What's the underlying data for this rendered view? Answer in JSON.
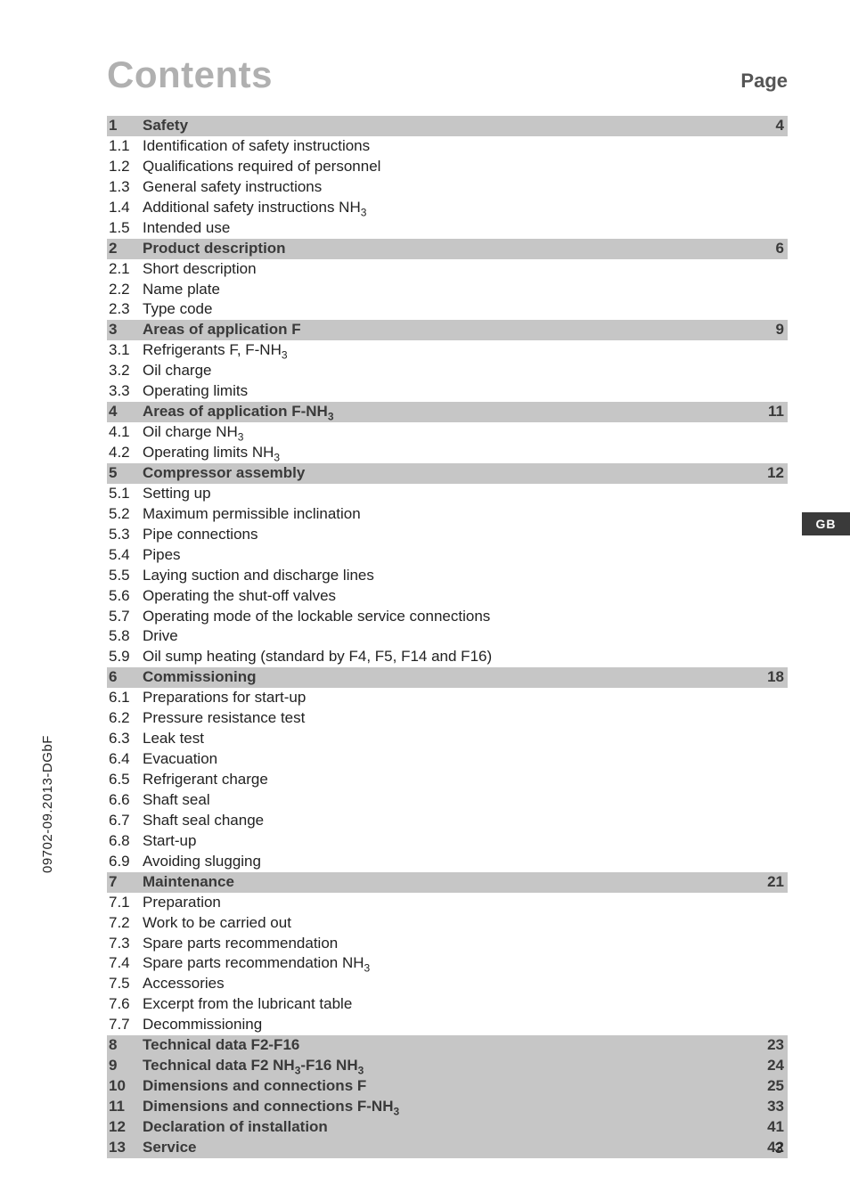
{
  "title": "Contents",
  "page_label": "Page",
  "side_code": "09702-09.2013-DGbF",
  "gb_tab": "GB",
  "footer_page": "3",
  "colors": {
    "title_gray": "#b0b0b0",
    "section_bg": "#c6c6c6",
    "section_fg": "#3a3a3a",
    "body_text": "#222222",
    "tab_bg": "#3a3a3a",
    "tab_fg": "#ffffff",
    "page_bg": "#ffffff"
  },
  "toc": [
    {
      "type": "section",
      "num": "1",
      "label": "Safety",
      "page": "4"
    },
    {
      "type": "item",
      "num": "1.1",
      "label": "Identification of safety instructions"
    },
    {
      "type": "item",
      "num": "1.2",
      "label": "Qualifications required of personnel"
    },
    {
      "type": "item",
      "num": "1.3",
      "label": "General safety instructions"
    },
    {
      "type": "item",
      "num": "1.4",
      "label_html": "Additional safety instructions NH<sub>3</sub>"
    },
    {
      "type": "item",
      "num": "1.5",
      "label": "Intended use"
    },
    {
      "type": "section",
      "num": "2",
      "label": "Product description",
      "page": "6"
    },
    {
      "type": "item",
      "num": "2.1",
      "label": "Short description"
    },
    {
      "type": "item",
      "num": "2.2",
      "label": "Name plate"
    },
    {
      "type": "item",
      "num": "2.3",
      "label": "Type code"
    },
    {
      "type": "section",
      "num": "3",
      "label": "Areas of application F",
      "page": "9"
    },
    {
      "type": "item",
      "num": "3.1",
      "label_html": "Refrigerants F, F-NH<sub>3</sub>"
    },
    {
      "type": "item",
      "num": "3.2",
      "label": "Oil charge"
    },
    {
      "type": "item",
      "num": "3.3",
      "label": "Operating limits"
    },
    {
      "type": "section",
      "num": "4",
      "label_html": "Areas of application F-NH<sub>3</sub>",
      "page": "11"
    },
    {
      "type": "item",
      "num": "4.1",
      "label_html": "Oil charge NH<sub>3</sub>"
    },
    {
      "type": "item",
      "num": "4.2",
      "label_html": "Operating limits NH<sub>3</sub>"
    },
    {
      "type": "section",
      "num": "5",
      "label": "Compressor assembly",
      "page": "12"
    },
    {
      "type": "item",
      "num": "5.1",
      "label": "Setting up"
    },
    {
      "type": "item",
      "num": "5.2",
      "label": "Maximum permissible inclination"
    },
    {
      "type": "item",
      "num": "5.3",
      "label": "Pipe connections"
    },
    {
      "type": "item",
      "num": "5.4",
      "label": "Pipes"
    },
    {
      "type": "item",
      "num": "5.5",
      "label": "Laying suction and discharge lines"
    },
    {
      "type": "item",
      "num": "5.6",
      "label": "Operating the shut-off valves"
    },
    {
      "type": "item",
      "num": "5.7",
      "label": "Operating mode of the lockable service connections"
    },
    {
      "type": "item",
      "num": "5.8",
      "label": "Drive"
    },
    {
      "type": "item",
      "num": "5.9",
      "label": "Oil sump heating (standard by F4, F5, F14 and F16)"
    },
    {
      "type": "section",
      "num": "6",
      "label": "Commissioning",
      "page": "18"
    },
    {
      "type": "item",
      "num": "6.1",
      "label": "Preparations for start-up"
    },
    {
      "type": "item",
      "num": "6.2",
      "label": "Pressure resistance test"
    },
    {
      "type": "item",
      "num": "6.3",
      "label": "Leak test"
    },
    {
      "type": "item",
      "num": "6.4",
      "label": "Evacuation"
    },
    {
      "type": "item",
      "num": "6.5",
      "label": "Refrigerant charge"
    },
    {
      "type": "item",
      "num": "6.6",
      "label": "Shaft seal"
    },
    {
      "type": "item",
      "num": "6.7",
      "label": "Shaft seal change"
    },
    {
      "type": "item",
      "num": "6.8",
      "label": "Start-up"
    },
    {
      "type": "item",
      "num": "6.9",
      "label": "Avoiding slugging"
    },
    {
      "type": "section",
      "num": "7",
      "label": "Maintenance",
      "page": "21"
    },
    {
      "type": "item",
      "num": "7.1",
      "label": "Preparation"
    },
    {
      "type": "item",
      "num": "7.2",
      "label": "Work to be carried out"
    },
    {
      "type": "item",
      "num": "7.3",
      "label": "Spare parts recommendation"
    },
    {
      "type": "item",
      "num": "7.4",
      "label_html": "Spare parts recommendation NH<sub>3</sub>"
    },
    {
      "type": "item",
      "num": "7.5",
      "label": "Accessories"
    },
    {
      "type": "item",
      "num": "7.6",
      "label": "Excerpt from the lubricant table"
    },
    {
      "type": "item",
      "num": "7.7",
      "label": "Decommissioning"
    },
    {
      "type": "section",
      "num": "8",
      "label": "Technical data F2-F16",
      "page": "23"
    },
    {
      "type": "section",
      "num": "9",
      "label_html": "Technical data F2 NH<sub>3</sub>-F16 NH<sub>3</sub>",
      "page": "24"
    },
    {
      "type": "section",
      "num": "10",
      "label": "Dimensions and connections F",
      "page": "25"
    },
    {
      "type": "section",
      "num": "11",
      "label_html": "Dimensions and connections F-NH<sub>3</sub>",
      "page": "33"
    },
    {
      "type": "section",
      "num": "12",
      "label": "Declaration of installation",
      "page": "41"
    },
    {
      "type": "section",
      "num": "13",
      "label": "Service",
      "page": "42"
    }
  ]
}
